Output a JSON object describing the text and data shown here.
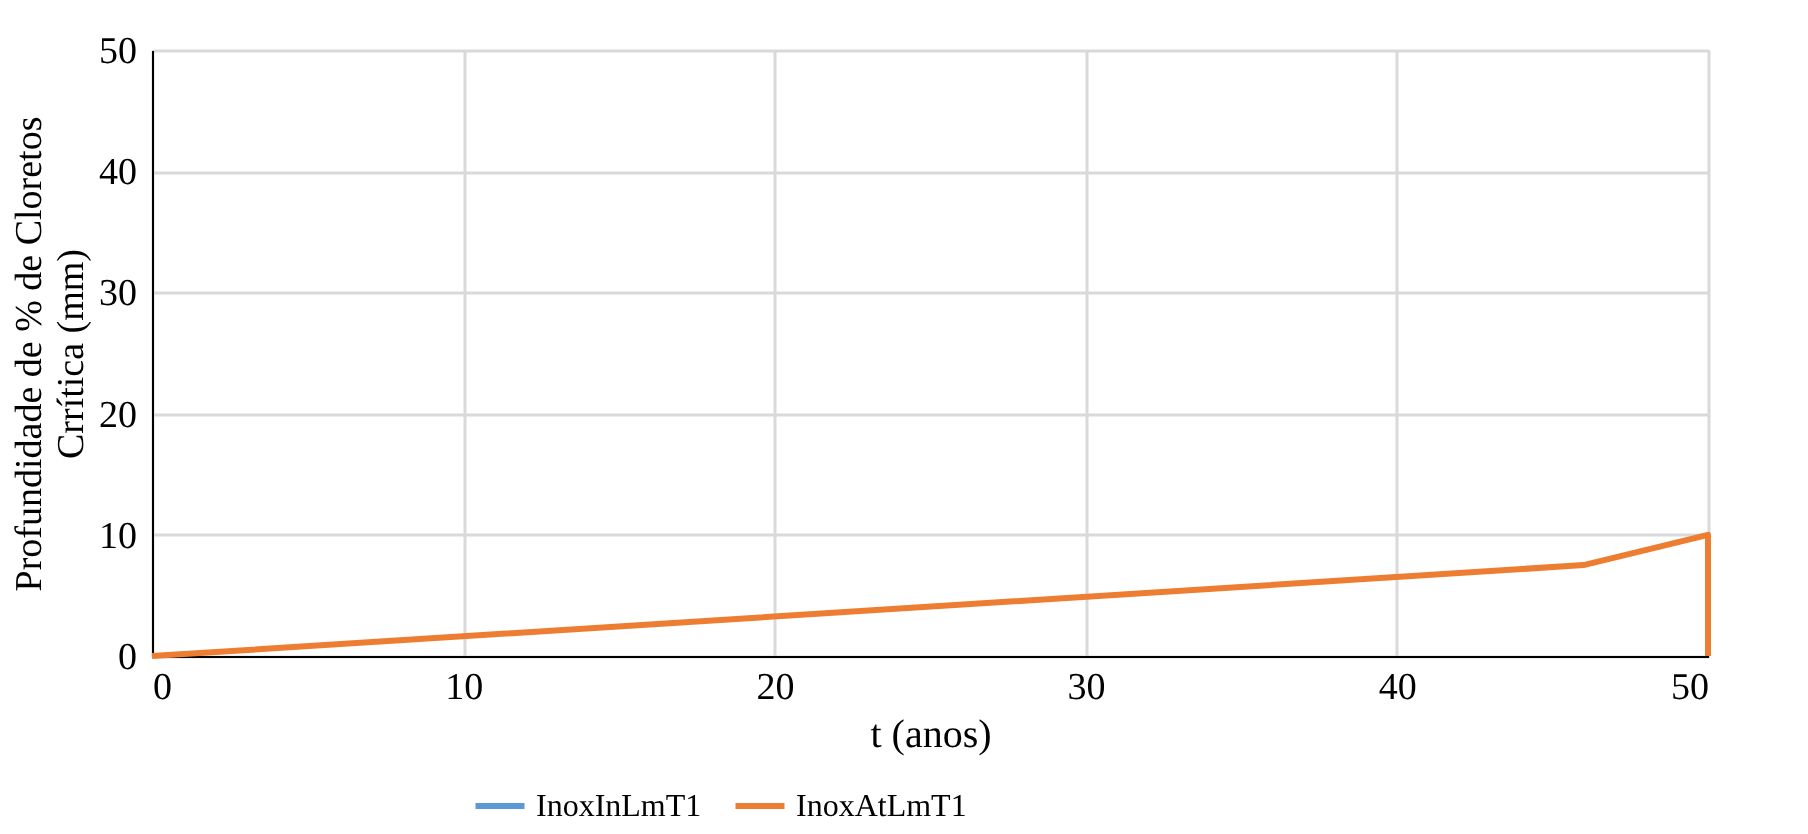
{
  "chart_data": {
    "type": "line",
    "xlabel": "t (anos)",
    "ylabel": [
      "Profundidade de % de Cloretos",
      "Crrítica (mm)"
    ],
    "x": [
      0,
      46,
      50,
      50
    ],
    "series": [
      {
        "name": "InoxInLmT1",
        "color": "#5b9bd5",
        "values": [
          null,
          null,
          null,
          null
        ]
      },
      {
        "name": "InoxAtLmT1",
        "color": "#ed7d31",
        "values": [
          0,
          7.5,
          10,
          0
        ]
      }
    ],
    "xlim": [
      0,
      50
    ],
    "xticks": [
      0,
      10,
      20,
      30,
      40,
      50
    ],
    "ylim": [
      0,
      50
    ],
    "yticks": [
      0,
      10,
      20,
      30,
      40,
      50
    ],
    "grid": true,
    "legend": "bottom",
    "marker": "none",
    "line_style": "solid"
  }
}
